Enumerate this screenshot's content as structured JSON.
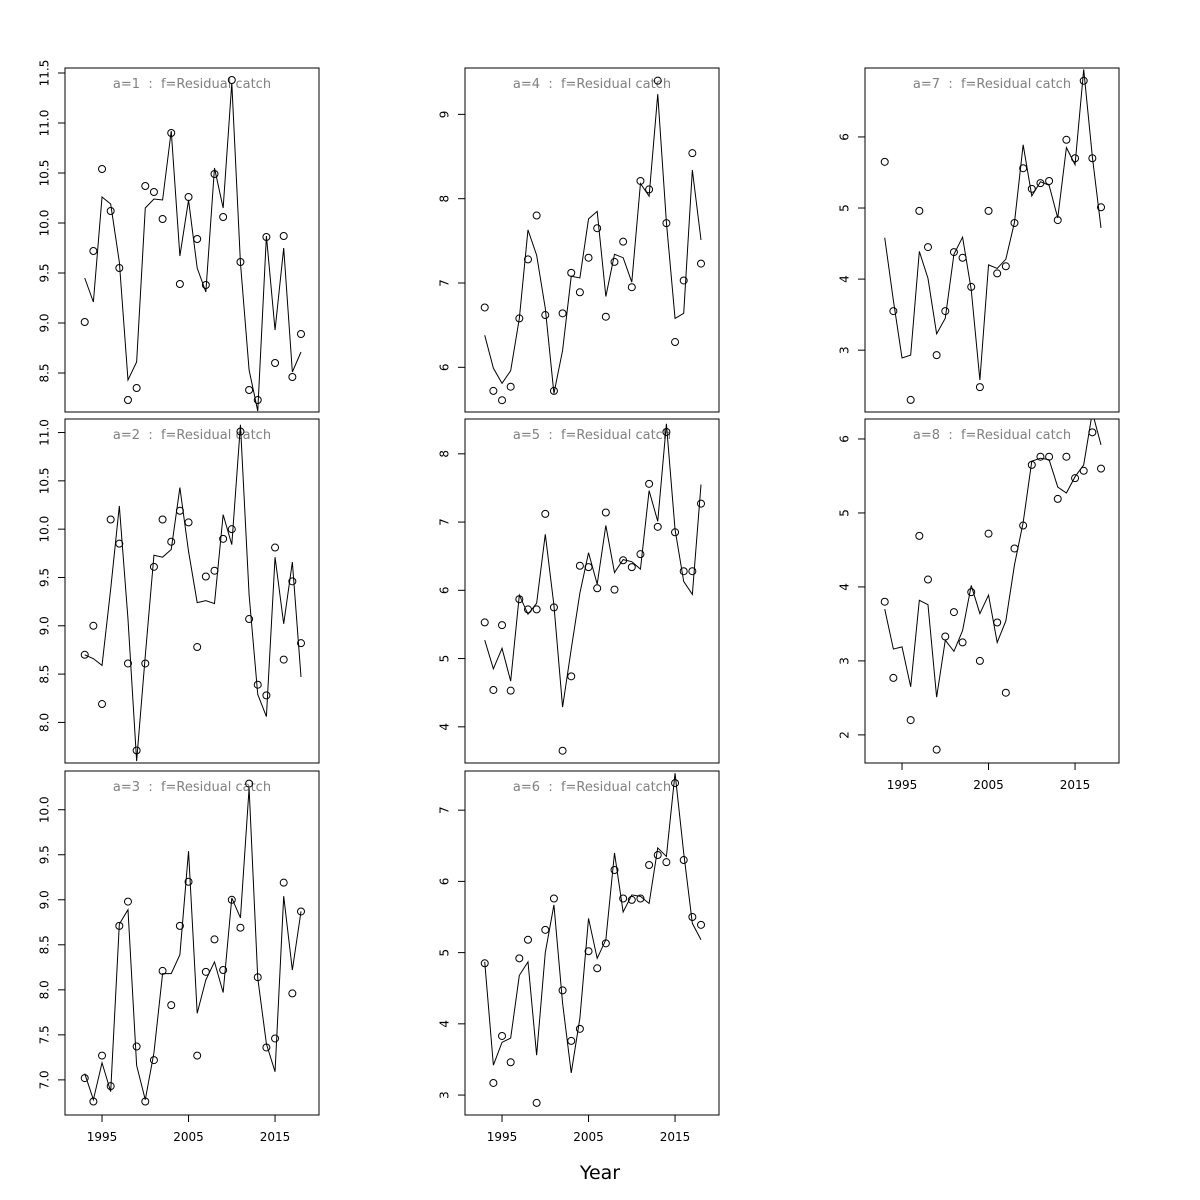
{
  "xlabel": "Year",
  "chart_data": [
    {
      "type": "line",
      "title": "a=1  :  f=Residual catch",
      "x": [
        1993,
        1994,
        1995,
        1996,
        1997,
        1998,
        1999,
        2000,
        2001,
        2002,
        2003,
        2004,
        2005,
        2006,
        2007,
        2008,
        2009,
        2010,
        2011,
        2012,
        2013,
        2014,
        2015,
        2016,
        2017,
        2018
      ],
      "xlim": [
        1990.72,
        2020.08
      ],
      "ylim": [
        8.11,
        11.55
      ],
      "yticks": [
        8.5,
        {
          "value": 9,
          "label": "9.0"
        },
        9.5,
        {
          "value": 10,
          "label": "10.0"
        },
        10.5,
        {
          "value": 11,
          "label": "11.0"
        },
        11.5
      ],
      "series": [
        {
          "mode": "points",
          "color": "#000000",
          "values": [
            9.01,
            9.72,
            10.54,
            10.12,
            9.55,
            8.23,
            8.35,
            10.37,
            10.31,
            10.04,
            10.9,
            9.39,
            10.26,
            9.84,
            9.38,
            10.49,
            10.06,
            11.43,
            9.61,
            8.33,
            8.23,
            9.86,
            8.6,
            9.87,
            8.46,
            8.89
          ]
        },
        {
          "mode": "line",
          "color": "#000000",
          "values": [
            9.45,
            9.21,
            10.26,
            10.19,
            9.61,
            8.43,
            8.61,
            10.15,
            10.24,
            10.23,
            10.92,
            9.67,
            10.23,
            9.55,
            9.31,
            10.55,
            10.15,
            11.4,
            9.6,
            8.53,
            8.12,
            9.87,
            8.93,
            9.75,
            8.51,
            8.71
          ]
        }
      ]
    },
    {
      "type": "line",
      "title": "a=2  :  f=Residual catch",
      "x": [
        1993,
        1994,
        1995,
        1996,
        1997,
        1998,
        1999,
        2000,
        2001,
        2002,
        2003,
        2004,
        2005,
        2006,
        2007,
        2008,
        2009,
        2010,
        2011,
        2012,
        2013,
        2014,
        2015,
        2016,
        2017,
        2018
      ],
      "xlim": [
        1990.72,
        2020.08
      ],
      "ylim": [
        7.58,
        11.14
      ],
      "yticks": [
        {
          "value": 8,
          "label": "8.0"
        },
        8.5,
        {
          "value": 9,
          "label": "9.0"
        },
        9.5,
        {
          "value": 10,
          "label": "10.0"
        },
        10.5,
        {
          "value": 11,
          "label": "11.0"
        }
      ],
      "series": [
        {
          "mode": "points",
          "color": "#000000",
          "values": [
            8.7,
            9.0,
            8.19,
            10.1,
            9.85,
            8.61,
            7.71,
            8.61,
            9.61,
            10.1,
            9.87,
            10.19,
            10.07,
            8.78,
            9.51,
            9.57,
            9.9,
            10.0,
            11.01,
            9.07,
            8.39,
            8.28,
            9.81,
            8.65,
            9.46,
            8.82
          ]
        },
        {
          "mode": "line",
          "color": "#000000",
          "values": [
            8.7,
            8.66,
            8.59,
            9.38,
            10.24,
            9.07,
            7.6,
            8.69,
            9.73,
            9.71,
            9.79,
            10.43,
            9.77,
            9.24,
            9.26,
            9.23,
            10.15,
            9.84,
            11.08,
            9.32,
            8.29,
            8.06,
            9.71,
            9.02,
            9.66,
            8.47
          ]
        }
      ]
    },
    {
      "type": "line",
      "title": "a=3  :  f=Residual catch",
      "x": [
        1993,
        1994,
        1995,
        1996,
        1997,
        1998,
        1999,
        2000,
        2001,
        2002,
        2003,
        2004,
        2005,
        2006,
        2007,
        2008,
        2009,
        2010,
        2011,
        2012,
        2013,
        2014,
        2015,
        2016,
        2017,
        2018
      ],
      "xlim": [
        1990.72,
        2020.08
      ],
      "xticks": [
        1995,
        2005,
        2015
      ],
      "ylim": [
        6.61,
        10.43
      ],
      "yticks": [
        {
          "value": 7,
          "label": "7.0"
        },
        7.5,
        {
          "value": 8,
          "label": "8.0"
        },
        8.5,
        {
          "value": 9,
          "label": "9.0"
        },
        9.5,
        {
          "value": 10,
          "label": "10.0"
        }
      ],
      "series": [
        {
          "mode": "points",
          "color": "#000000",
          "values": [
            7.02,
            6.76,
            7.27,
            6.93,
            8.71,
            8.98,
            7.37,
            6.76,
            7.22,
            8.21,
            7.83,
            8.71,
            9.2,
            7.27,
            8.2,
            8.56,
            8.22,
            9.0,
            8.69,
            10.29,
            8.14,
            7.36,
            7.46,
            9.19,
            7.96,
            8.87
          ]
        },
        {
          "mode": "line",
          "color": "#000000",
          "values": [
            7.07,
            6.78,
            7.19,
            6.87,
            8.73,
            8.89,
            7.16,
            6.78,
            7.3,
            8.18,
            8.18,
            8.39,
            9.54,
            7.74,
            8.11,
            8.31,
            7.97,
            9.02,
            8.8,
            10.24,
            8.13,
            7.4,
            7.09,
            9.04,
            8.22,
            8.87
          ]
        }
      ]
    },
    {
      "type": "line",
      "title": "a=4  :  f=Residual catch",
      "x": [
        1993,
        1994,
        1995,
        1996,
        1997,
        1998,
        1999,
        2000,
        2001,
        2002,
        2003,
        2004,
        2005,
        2006,
        2007,
        2008,
        2009,
        2010,
        2011,
        2012,
        2013,
        2014,
        2015,
        2016,
        2017,
        2018
      ],
      "xlim": [
        1990.72,
        2020.08
      ],
      "ylim": [
        5.47,
        9.55
      ],
      "yticks": [
        6,
        7,
        8,
        9
      ],
      "series": [
        {
          "mode": "points",
          "color": "#000000",
          "values": [
            6.71,
            5.72,
            5.61,
            5.77,
            6.58,
            7.28,
            7.8,
            6.62,
            5.72,
            6.64,
            7.12,
            6.89,
            7.3,
            7.65,
            6.6,
            7.25,
            7.49,
            6.95,
            8.21,
            8.11,
            9.4,
            7.71,
            6.3,
            7.03,
            8.54,
            7.23
          ]
        },
        {
          "mode": "line",
          "color": "#000000",
          "values": [
            6.38,
            5.99,
            5.81,
            5.96,
            6.58,
            7.63,
            7.33,
            6.7,
            5.69,
            6.2,
            7.08,
            7.06,
            7.76,
            7.85,
            6.84,
            7.34,
            7.3,
            7.01,
            8.18,
            8.03,
            9.24,
            7.72,
            6.58,
            6.64,
            8.34,
            7.51
          ]
        }
      ]
    },
    {
      "type": "line",
      "title": "a=5  :  f=Residual catch",
      "x": [
        1993,
        1994,
        1995,
        1996,
        1997,
        1998,
        1999,
        2000,
        2001,
        2002,
        2003,
        2004,
        2005,
        2006,
        2007,
        2008,
        2009,
        2010,
        2011,
        2012,
        2013,
        2014,
        2015,
        2016,
        2017,
        2018
      ],
      "xlim": [
        1990.72,
        2020.08
      ],
      "ylim": [
        3.47,
        8.51
      ],
      "yticks": [
        4,
        5,
        6,
        7,
        8
      ],
      "series": [
        {
          "mode": "points",
          "color": "#000000",
          "values": [
            5.53,
            4.54,
            5.49,
            4.53,
            5.87,
            5.72,
            5.72,
            7.12,
            5.75,
            3.65,
            4.74,
            6.36,
            6.34,
            6.03,
            7.14,
            6.01,
            6.44,
            6.34,
            6.53,
            7.56,
            6.93,
            8.32,
            6.85,
            6.28,
            6.28,
            7.27
          ]
        },
        {
          "mode": "line",
          "color": "#000000",
          "values": [
            5.27,
            4.85,
            5.15,
            4.67,
            5.93,
            5.65,
            5.81,
            6.82,
            5.78,
            4.29,
            5.14,
            5.96,
            6.55,
            6.09,
            6.95,
            6.26,
            6.45,
            6.42,
            6.31,
            7.46,
            7.01,
            8.44,
            6.89,
            6.13,
            5.94,
            7.55
          ]
        }
      ]
    },
    {
      "type": "line",
      "title": "a=6  :  f=Residual catch",
      "x": [
        1993,
        1994,
        1995,
        1996,
        1997,
        1998,
        1999,
        2000,
        2001,
        2002,
        2003,
        2004,
        2005,
        2006,
        2007,
        2008,
        2009,
        2010,
        2011,
        2012,
        2013,
        2014,
        2015,
        2016,
        2017,
        2018
      ],
      "xlim": [
        1990.72,
        2020.08
      ],
      "xticks": [
        1995,
        2005,
        2015
      ],
      "ylim": [
        2.72,
        7.55
      ],
      "yticks": [
        3,
        4,
        5,
        6,
        7
      ],
      "series": [
        {
          "mode": "points",
          "color": "#000000",
          "values": [
            4.85,
            3.17,
            3.83,
            3.46,
            4.92,
            5.18,
            2.89,
            5.32,
            5.76,
            4.47,
            3.76,
            3.93,
            5.02,
            4.78,
            5.13,
            6.16,
            5.76,
            5.74,
            5.76,
            6.23,
            6.37,
            6.27,
            7.38,
            6.3,
            5.5,
            5.39
          ]
        },
        {
          "mode": "line",
          "color": "#000000",
          "values": [
            4.87,
            3.42,
            3.74,
            3.8,
            4.68,
            4.87,
            3.56,
            5.0,
            5.67,
            4.29,
            3.31,
            4.08,
            5.48,
            4.92,
            5.18,
            6.4,
            5.57,
            5.81,
            5.79,
            5.69,
            6.47,
            6.35,
            7.52,
            6.4,
            5.41,
            5.18
          ]
        }
      ]
    },
    {
      "type": "line",
      "title": "a=7  :  f=Residual catch",
      "x": [
        1993,
        1994,
        1995,
        1996,
        1997,
        1998,
        1999,
        2000,
        2001,
        2002,
        2003,
        2004,
        2005,
        2006,
        2007,
        2008,
        2009,
        2010,
        2011,
        2012,
        2013,
        2014,
        2015,
        2016,
        2017,
        2018
      ],
      "xlim": [
        1990.72,
        2020.08
      ],
      "ylim": [
        2.13,
        6.97
      ],
      "yticks": [
        3,
        4,
        5,
        6
      ],
      "series": [
        {
          "mode": "points",
          "color": "#000000",
          "values": [
            5.65,
            3.55,
            null,
            2.3,
            4.96,
            4.45,
            2.93,
            3.55,
            4.38,
            4.3,
            3.89,
            2.48,
            4.96,
            4.08,
            4.18,
            4.79,
            5.56,
            5.27,
            5.35,
            5.38,
            4.83,
            5.96,
            5.7,
            6.79,
            5.7,
            5.01
          ]
        },
        {
          "mode": "line",
          "color": "#000000",
          "values": [
            4.58,
            3.7,
            2.89,
            2.93,
            4.39,
            4.01,
            3.23,
            3.45,
            4.35,
            4.59,
            3.85,
            2.58,
            4.2,
            4.15,
            4.28,
            4.8,
            5.89,
            5.17,
            5.37,
            5.32,
            4.86,
            5.85,
            5.61,
            6.95,
            5.72,
            4.72
          ]
        }
      ]
    },
    {
      "type": "line",
      "title": "a=8  :  f=Residual catch",
      "x": [
        1993,
        1994,
        1995,
        1996,
        1997,
        1998,
        1999,
        2000,
        2001,
        2002,
        2003,
        2004,
        2005,
        2006,
        2007,
        2008,
        2009,
        2010,
        2011,
        2012,
        2013,
        2014,
        2015,
        2016,
        2017,
        2018
      ],
      "xlim": [
        1990.72,
        2020.08
      ],
      "xticks": [
        1995,
        2005,
        2015
      ],
      "ylim": [
        1.62,
        6.27
      ],
      "yticks": [
        2,
        3,
        4,
        5,
        6
      ],
      "series": [
        {
          "mode": "points",
          "color": "#000000",
          "values": [
            3.8,
            2.77,
            null,
            2.2,
            4.69,
            4.1,
            1.8,
            3.33,
            3.66,
            3.25,
            3.93,
            3.0,
            4.72,
            3.52,
            2.57,
            4.52,
            4.83,
            5.65,
            5.76,
            5.76,
            5.19,
            5.76,
            5.47,
            5.57,
            6.09,
            5.6
          ]
        },
        {
          "mode": "line",
          "color": "#000000",
          "values": [
            3.7,
            3.16,
            3.19,
            2.65,
            3.82,
            3.76,
            2.51,
            3.28,
            3.13,
            3.41,
            4.02,
            3.64,
            3.89,
            3.25,
            3.54,
            4.3,
            4.87,
            5.7,
            5.74,
            5.72,
            5.35,
            5.27,
            5.49,
            5.65,
            6.36,
            5.92
          ]
        }
      ]
    }
  ]
}
